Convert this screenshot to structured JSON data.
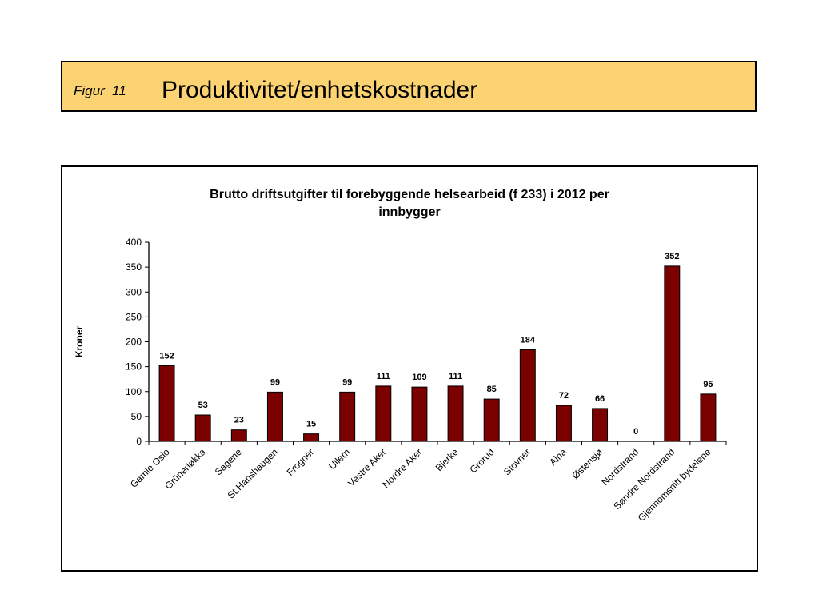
{
  "header": {
    "figure_label": "Figur  11",
    "title": "Produktivitet/enhetskostnader"
  },
  "colors": {
    "header_bg": "#fcd372",
    "bar_fill": "#7b0000"
  },
  "chart_data": {
    "type": "bar",
    "title_lines": [
      "Brutto driftsutgifter til forebyggende helsearbeid (f 233) i 2012 per",
      "innbygger"
    ],
    "xlabel": "",
    "ylabel": "Kroner",
    "ylim": [
      0,
      400
    ],
    "yticks": [
      0,
      50,
      100,
      150,
      200,
      250,
      300,
      350,
      400
    ],
    "categories": [
      "Gamle Oslo",
      "Grünerløkka",
      "Sagene",
      "St.Hanshaugen",
      "Frogner",
      "Ullern",
      "Vestre Aker",
      "Nordre Aker",
      "Bjerke",
      "Grorud",
      "Stovner",
      "Alna",
      "Østensjø",
      "Nordstrand",
      "Søndre Nordstrand",
      "Gjennomsnitt bydelene"
    ],
    "values": [
      152,
      53,
      23,
      99,
      15,
      99,
      111,
      109,
      111,
      85,
      184,
      72,
      66,
      0,
      352,
      95
    ],
    "data_labels": true,
    "grid": false,
    "legend": "none"
  }
}
